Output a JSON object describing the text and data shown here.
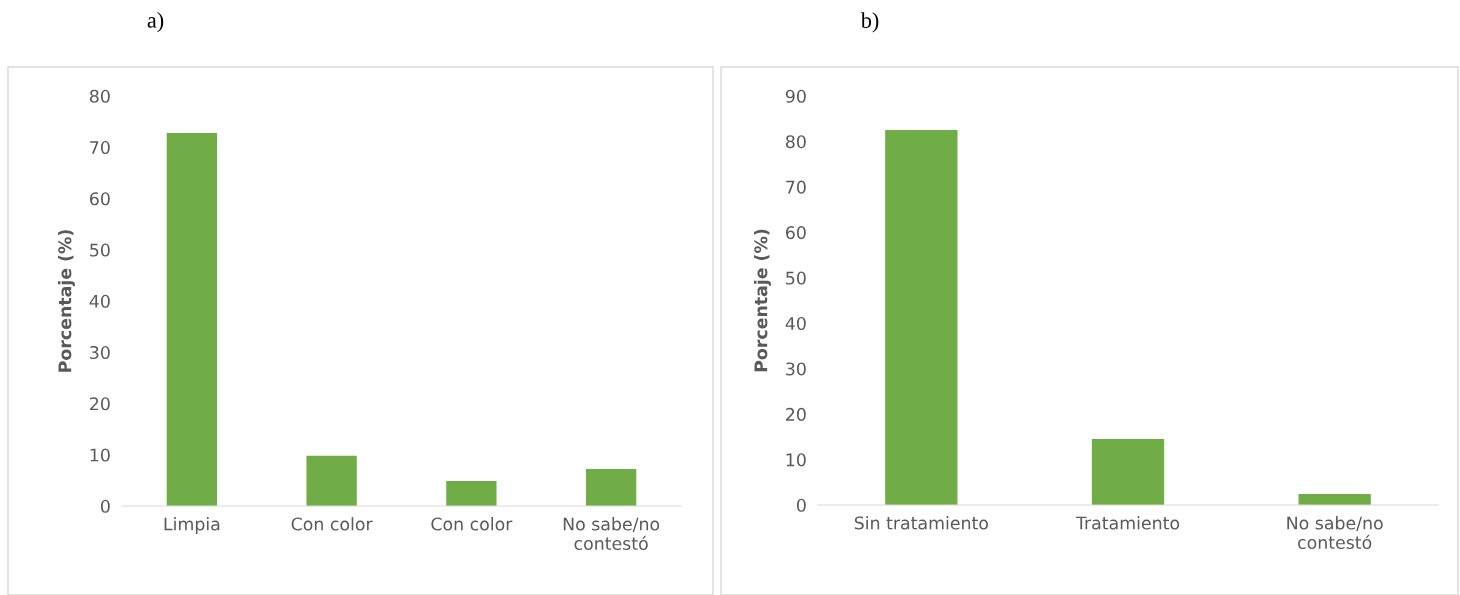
{
  "chart_data": [
    {
      "type": "bar",
      "title": "a)",
      "ylabel": "Porcentaje (%)",
      "categories": [
        "Limpia",
        "Con color",
        "Con color",
        "No sabe/no\ncontestó"
      ],
      "values": [
        72.8,
        9.8,
        4.9,
        7.2
      ],
      "color": "#70ad47",
      "ylim": [
        0,
        80
      ],
      "yticks": [
        0,
        10,
        20,
        30,
        40,
        50,
        60,
        70,
        80
      ],
      "grid": false,
      "legend": false
    },
    {
      "type": "bar",
      "title": "b)",
      "ylabel": "Porcentaje (%)",
      "categories": [
        "Sin tratamiento",
        "Tratamiento",
        "No sabe/no\ncontestó"
      ],
      "values": [
        82.5,
        14.5,
        2.4
      ],
      "color": "#70ad47",
      "ylim": [
        0,
        90
      ],
      "yticks": [
        0,
        10,
        20,
        30,
        40,
        50,
        60,
        70,
        80,
        90
      ],
      "grid": false,
      "legend": false
    }
  ]
}
